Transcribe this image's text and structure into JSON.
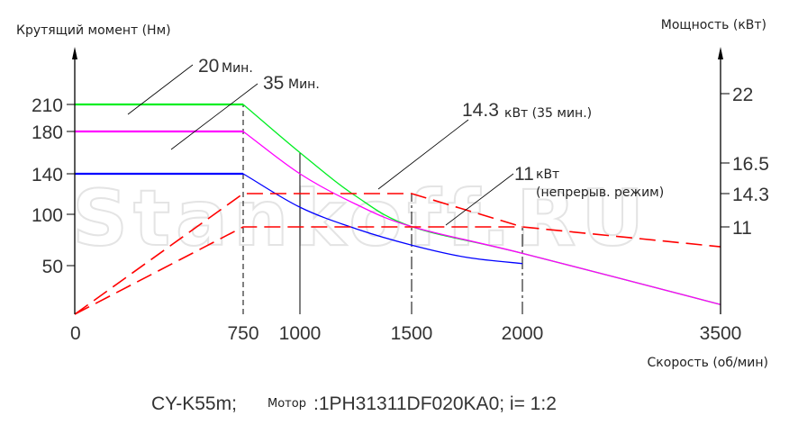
{
  "chart_data": {
    "type": "line",
    "title": "",
    "ylabel": "Крутящий момент (Нм)",
    "y2label": "Мощность (кВт)",
    "xlabel": "Скорость (об/мин)",
    "x_ticks": [
      0,
      750,
      1000,
      1500,
      2000,
      3500
    ],
    "y_ticks": [
      50,
      100,
      140,
      180,
      210
    ],
    "y2_ticks": [
      11,
      14.3,
      16.5,
      22
    ],
    "torque_series": [
      {
        "name": "20 Мин.",
        "color": "#00ee22",
        "points": [
          [
            0,
            210
          ],
          [
            750,
            210
          ],
          [
            1000,
            160
          ],
          [
            1250,
            118
          ],
          [
            1500,
            88
          ],
          [
            2000,
            62
          ],
          [
            3500,
            10
          ]
        ]
      },
      {
        "name": "35 Мин.",
        "color": "#ff00ff",
        "points": [
          [
            0,
            180
          ],
          [
            750,
            180
          ],
          [
            1000,
            140
          ],
          [
            1250,
            110
          ],
          [
            1500,
            88
          ],
          [
            2000,
            62
          ],
          [
            3500,
            10
          ]
        ]
      },
      {
        "name": "140",
        "color": "#0000ff",
        "points": [
          [
            0,
            140
          ],
          [
            750,
            140
          ],
          [
            1000,
            107
          ],
          [
            1250,
            86
          ],
          [
            1500,
            70
          ],
          [
            1750,
            58
          ],
          [
            2000,
            52
          ]
        ]
      }
    ],
    "power_series": [
      {
        "name": "14.3 кВт (35 мин.)",
        "color": "#ff0000",
        "points": [
          [
            0,
            0
          ],
          [
            750,
            14.3
          ],
          [
            1500,
            14.3
          ],
          [
            2000,
            11
          ],
          [
            3500,
            8.5
          ]
        ]
      },
      {
        "name": "11 кВт (непрерыв. режим)",
        "color": "#ff0000",
        "points": [
          [
            0,
            0
          ],
          [
            750,
            11
          ],
          [
            2000,
            11
          ]
        ]
      }
    ],
    "annotations": {
      "a20": {
        "num": "20",
        "unit": "Мин."
      },
      "a35": {
        "num": "35",
        "unit": "Мин."
      },
      "p143": {
        "num": "14.3",
        "unit": "кВт (35 мин.)"
      },
      "p11": {
        "num": "11",
        "unit": "кВт",
        "unit2": "(непрерыв. режим)"
      }
    }
  },
  "footer": {
    "model": "CY-K55m;",
    "motor_label": "Мотор",
    "motor_value": ":1PH31311DF020KA0; i= 1:2"
  },
  "watermark": "Stankoff.RU"
}
